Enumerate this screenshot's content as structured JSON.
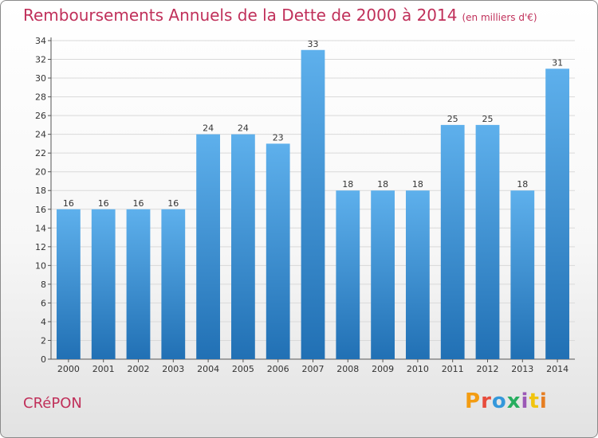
{
  "header": {
    "title": "Remboursements Annuels de la Dette de 2000 à 2014",
    "unit": "(en milliers d'€)"
  },
  "footer": {
    "commune": "CRéPON",
    "brand": "Proxiti"
  },
  "colors": {
    "title": "#c0305a",
    "bar_top": "#5eb0ec",
    "bar_bottom": "#2170b4",
    "brand_letters": [
      "#f39c12",
      "#e74c3c",
      "#3498db",
      "#27ae60",
      "#9b59b6",
      "#f1c40f",
      "#e67e22"
    ]
  },
  "chart_data": {
    "type": "bar",
    "title": "Remboursements Annuels de la Dette de 2000 à 2014",
    "xlabel": "",
    "ylabel": "",
    "categories": [
      "2000",
      "2001",
      "2002",
      "2003",
      "2004",
      "2005",
      "2006",
      "2007",
      "2008",
      "2009",
      "2010",
      "2011",
      "2012",
      "2013",
      "2014"
    ],
    "values": [
      16,
      16,
      16,
      16,
      24,
      24,
      23,
      33,
      18,
      18,
      18,
      25,
      25,
      18,
      31
    ],
    "ylim": [
      0,
      34
    ],
    "ytick_step": 2,
    "grid": true
  }
}
